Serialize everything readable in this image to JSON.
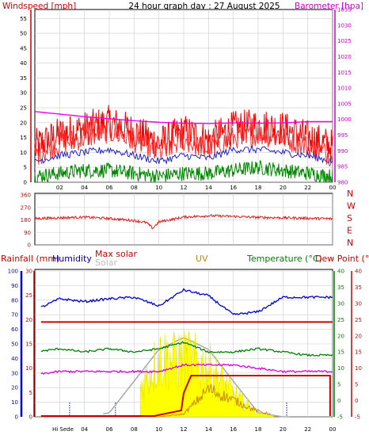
{
  "title": "24 hour graph day : 27 August 2025",
  "colors": {
    "wind": "#ff0000",
    "gust": "#cc0000",
    "windAvg": "#008800",
    "windLine2": "#2222cc",
    "baro": "#ee00ee",
    "dir": "#e02020",
    "humidity": "#0000cc",
    "maxsolar": "#cc0000",
    "solar": "#bbbbbb",
    "uv": "#cc8800",
    "temp": "#008000",
    "dew": "#cc0000",
    "rain": "#cc0000",
    "sunfill": "#ffff00",
    "axisBlue": "#0000cc",
    "grid": "#cccccc"
  },
  "chart_data": [
    {
      "type": "line",
      "labels": {
        "left": "Windspeed [mph]",
        "right": "Barometer [hpa]"
      },
      "x_ticks": [
        "02",
        "04",
        "06",
        "08",
        "10",
        "12",
        "14",
        "16",
        "18",
        "20",
        "22",
        "00"
      ],
      "y_left_ticks": [
        "0",
        "5",
        "10",
        "15",
        "20",
        "25",
        "30",
        "35",
        "40",
        "45",
        "50",
        "55"
      ],
      "y_right_ticks": [
        "980",
        "985",
        "990",
        "995",
        "1000",
        "1005",
        "1010",
        "1015",
        "1020",
        "1025",
        "1030",
        "1035"
      ],
      "ylim_left": [
        0,
        58
      ],
      "ylim_right": [
        980,
        1035
      ],
      "x_hours": [
        0,
        2,
        4,
        6,
        8,
        10,
        12,
        14,
        16,
        18,
        20,
        22,
        24
      ],
      "wind_gust_mph": [
        12,
        16,
        18,
        20,
        17,
        13,
        17,
        14,
        18,
        19,
        18,
        15,
        12
      ],
      "wind_avg_mph": [
        7,
        9,
        10,
        11,
        9,
        7,
        9,
        8,
        11,
        11,
        10,
        9,
        7
      ],
      "wind_low_mph": [
        2,
        3,
        4,
        4,
        3,
        2,
        3,
        3,
        4,
        5,
        4,
        3,
        2
      ],
      "barometer_hpa": [
        1002.5,
        1001.7,
        1000.9,
        1000.2,
        999.6,
        999.1,
        998.8,
        998.7,
        998.9,
        998.8,
        998.9,
        999.3,
        999.3
      ]
    },
    {
      "type": "line",
      "labels": {
        "compass": [
          "N",
          "W",
          "S",
          "E",
          "N"
        ]
      },
      "y_ticks": [
        "0",
        "90",
        "180",
        "270",
        "360"
      ],
      "ylim": [
        0,
        360
      ],
      "x_hours": [
        0,
        2,
        4,
        6,
        8,
        9,
        9.5,
        10,
        12,
        14,
        16,
        18,
        20,
        22,
        24
      ],
      "direction_deg": [
        190,
        195,
        200,
        190,
        175,
        160,
        120,
        165,
        200,
        210,
        205,
        198,
        195,
        192,
        188
      ]
    },
    {
      "type": "line",
      "labels": {
        "rainfall": "Rainfall (mm)",
        "humidity": "Humidity",
        "maxsolar": "Max solar",
        "solar": "Solar",
        "uv": "UV",
        "temperature": "Temperature (°C)",
        "dewpoint": "Dew Point (°C)",
        "hi_sede": "Hi Sede"
      },
      "y_humidity_ticks": [
        "0",
        "10",
        "20",
        "30",
        "40",
        "50",
        "60",
        "70",
        "80",
        "90",
        "100"
      ],
      "y_rain_ticks": [
        "0",
        "5",
        "10",
        "15",
        "20",
        "25",
        "30"
      ],
      "y_temp_ticks": [
        "-5",
        "0",
        "5",
        "10",
        "15",
        "20",
        "25",
        "30",
        "35",
        "40"
      ],
      "ylim_humidity": [
        0,
        100
      ],
      "ylim_temp": [
        -5,
        40
      ],
      "x_hours": [
        0,
        2,
        4,
        6,
        8,
        10,
        12,
        14,
        16,
        18,
        20,
        22,
        24
      ],
      "humidity_pct": [
        73,
        81,
        79,
        81,
        82,
        76,
        87,
        83,
        70,
        72,
        82,
        82,
        82
      ],
      "temperature_c": [
        15,
        16,
        15,
        16,
        15,
        16,
        18,
        15,
        15,
        16,
        15,
        14,
        14
      ],
      "dewpoint_c": [
        8,
        9,
        9,
        9,
        9,
        9,
        11,
        11,
        11,
        10,
        9,
        9,
        9
      ],
      "rain_mm": [
        0,
        0,
        0,
        0,
        0,
        0,
        4,
        7.5,
        7.5,
        7.5,
        7.5,
        7.5,
        0
      ],
      "uv_index": [
        0,
        0,
        0,
        0,
        0,
        0,
        0.5,
        5,
        3,
        1,
        0,
        0,
        0
      ],
      "solar_curve": [
        0,
        0,
        0,
        0,
        0.3,
        0.9,
        0.9,
        0.75,
        0.35,
        0.05,
        0,
        0,
        0
      ],
      "maxsolar_curve": [
        0,
        0,
        0,
        0.05,
        0.45,
        0.85,
        1.0,
        0.85,
        0.45,
        0.05,
        0,
        0,
        0
      ]
    }
  ]
}
